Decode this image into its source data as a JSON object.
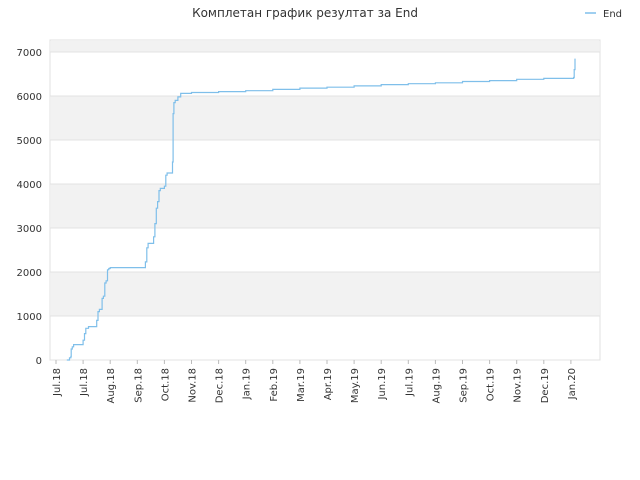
{
  "chart_data": {
    "type": "line",
    "title": "Комплетан график резултат за End",
    "xlabel": "",
    "ylabel": "",
    "x_ticks": [
      "Jul.18",
      "Jul.18",
      "Aug.18",
      "Sep.18",
      "Oct.18",
      "Nov.18",
      "Dec.18",
      "Jan.19",
      "Feb.19",
      "Mar.19",
      "Apr.19",
      "May.19",
      "Jun.19",
      "Jul.19",
      "Aug.19",
      "Sep.19",
      "Oct.19",
      "Nov.19",
      "Dec.19",
      "Jan.20"
    ],
    "y_ticks": [
      0,
      1000,
      2000,
      3000,
      4000,
      5000,
      6000,
      7000
    ],
    "ylim": [
      0,
      7000
    ],
    "grid": true,
    "legend": "top-right",
    "series": [
      {
        "name": "End",
        "color": "#7fbfea",
        "x": [
          0.4,
          0.5,
          0.55,
          0.56,
          0.6,
          0.65,
          1.0,
          1.05,
          1.1,
          1.2,
          1.5,
          1.55,
          1.6,
          1.65,
          1.7,
          1.75,
          1.8,
          1.85,
          1.9,
          1.95,
          2.0,
          3.3,
          3.35,
          3.4,
          3.6,
          3.65,
          3.7,
          3.75,
          3.8,
          3.85,
          4.0,
          4.05,
          4.1,
          4.3,
          4.32,
          4.35,
          4.4,
          4.5,
          4.6,
          5.0,
          6.0,
          7.0,
          8.0,
          9.0,
          10.0,
          11.0,
          12.0,
          13.0,
          14.0,
          15.0,
          16.0,
          17.0,
          18.0,
          19.1,
          19.12,
          19.15
        ],
        "y": [
          0,
          50,
          80,
          250,
          300,
          350,
          450,
          600,
          720,
          760,
          900,
          1100,
          1150,
          1150,
          1400,
          1450,
          1750,
          1800,
          2050,
          2080,
          2100,
          2230,
          2550,
          2650,
          2800,
          3100,
          3450,
          3600,
          3850,
          3900,
          3950,
          4200,
          4250,
          4500,
          5600,
          5850,
          5900,
          5980,
          6060,
          6080,
          6100,
          6120,
          6150,
          6180,
          6200,
          6230,
          6260,
          6280,
          6300,
          6330,
          6350,
          6380,
          6400,
          6420,
          6600,
          6850
        ]
      }
    ]
  }
}
